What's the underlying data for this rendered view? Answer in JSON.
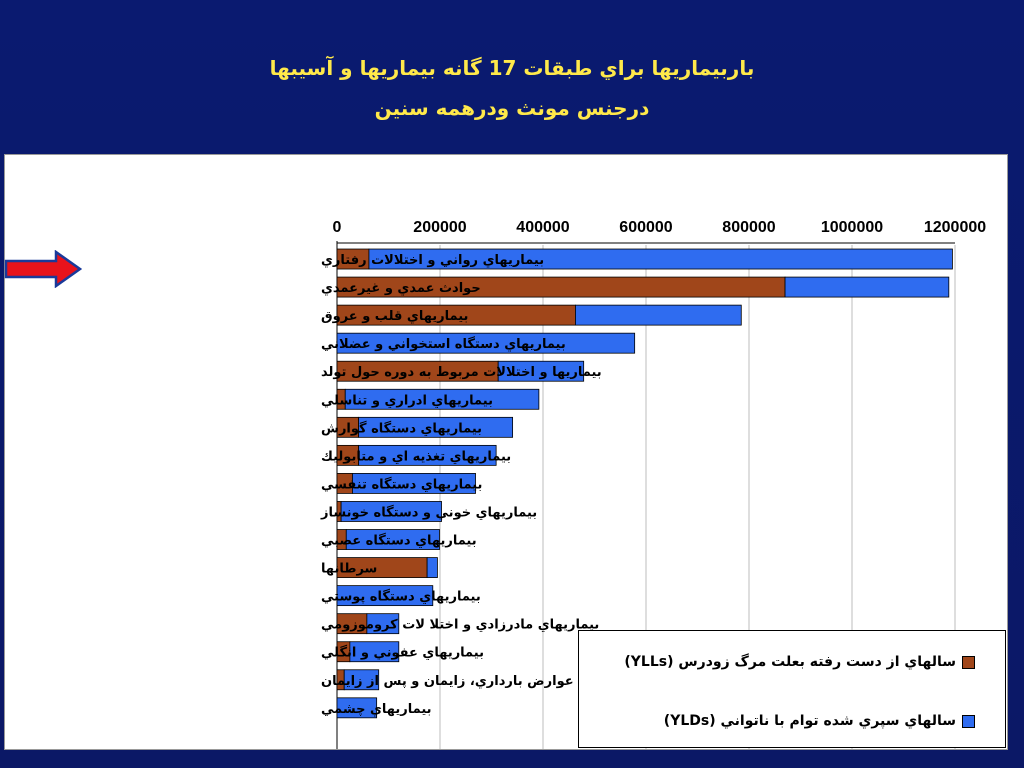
{
  "slide": {
    "title_line1": "باربيماريها  براي طبقات 17 گانه بيماريها و آسيبها",
    "title_line2": "درجنس مونث ودرهمه سنين"
  },
  "chart_data": {
    "type": "bar",
    "orientation": "horizontal",
    "stacked": true,
    "xlim": [
      0,
      1200000
    ],
    "x_ticks": [
      "0",
      "200000",
      "400000",
      "600000",
      "800000",
      "1000000",
      "1200000"
    ],
    "x_tick_values": [
      0,
      200000,
      400000,
      600000,
      800000,
      1000000,
      1200000
    ],
    "grid": "vertical",
    "legend_placement": "bottom-right",
    "categories": [
      "بيماريهاي رواني و اختلالات رفتاري",
      "حوادث عمدي و غيرعمدي",
      "بيماريهاي قلب و عروق",
      "بيماريهاي دستگاه استخواني و عضلاني",
      "بيماريها و اختلالات مربوط به دوره حول تولد",
      "بيماريهاي ادراري و تناسلي",
      "بيماريهاي دستگاه گوارش",
      "بيماريهاي تغذيه اي و متابوليك",
      "بيماريهاي دستگاه  تنفسي",
      "بيماريهاي خوني و دستگاه خونساز",
      "بيماريهاي دستگاه عصبي",
      "سرطانها",
      "بيماريهاي دستگاه پوستي",
      "بيماريهاي مادرزادي و اختلا لات كروموزومي",
      "بيماريهاي عفوني و انگلي",
      "عوارض بارداري، زايمان و پس از زايمان",
      "بيماريهاي چشمي"
    ],
    "series": [
      {
        "name": "سالهاي از دست رفته بعلت مرگ زودرس   (YLLs)",
        "color": "#a0461a",
        "values": [
          62000,
          870000,
          463000,
          0,
          313000,
          16000,
          42000,
          42000,
          30000,
          8000,
          18000,
          175000,
          0,
          58000,
          25000,
          14000,
          0
        ]
      },
      {
        "name": "سالهاي سپري شده توام با ناتواني   (YLDs)",
        "color": "#2f6cf0",
        "values": [
          1133000,
          318000,
          322000,
          578000,
          166000,
          376000,
          299000,
          267000,
          239000,
          195000,
          181000,
          20000,
          186000,
          62000,
          95000,
          67000,
          77000
        ]
      }
    ]
  },
  "annotations": {
    "highlight_arrow": "red-arrow-icon"
  }
}
